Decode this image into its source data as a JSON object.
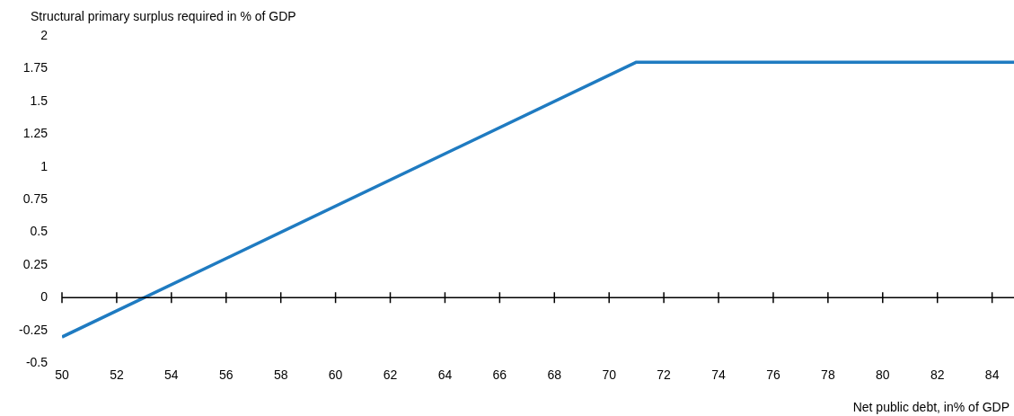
{
  "chart_data": {
    "type": "line",
    "xlabel": "Net public debt, in% of GDP",
    "ylabel": "Structural primary surplus required in % of GDP",
    "x": [
      50,
      71,
      84.8
    ],
    "series": [
      {
        "color": "#1f7bc1",
        "values": [
          -0.3,
          1.8,
          1.8
        ]
      }
    ],
    "xlim": [
      50,
      84.8
    ],
    "xticks": [
      50,
      52,
      54,
      56,
      58,
      60,
      62,
      64,
      66,
      68,
      70,
      72,
      74,
      76,
      78,
      80,
      82,
      84
    ],
    "ylim": [
      -0.5,
      2
    ],
    "yticks": [
      -0.5,
      -0.25,
      0,
      0.25,
      0.5,
      0.75,
      1,
      1.25,
      1.5,
      1.75,
      2
    ],
    "ref_lines": [
      {
        "axis": "y",
        "value": 0,
        "color": "#000000"
      }
    ],
    "grid": false,
    "legend": false,
    "marker": "none",
    "line_style": "solid"
  }
}
